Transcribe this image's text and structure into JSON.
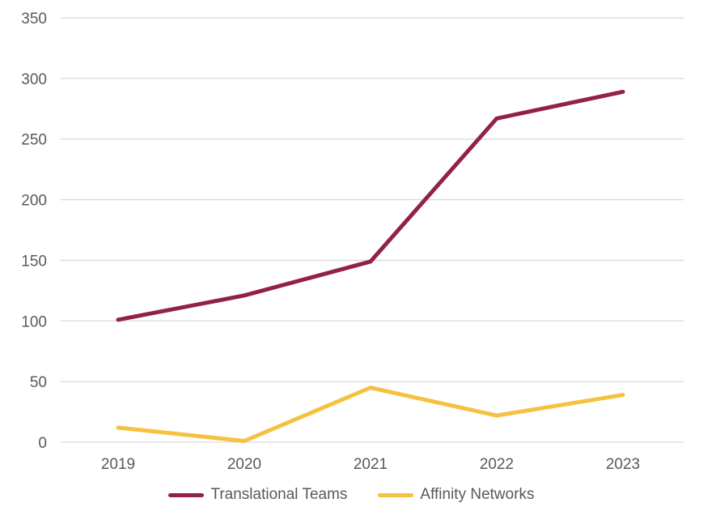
{
  "chart_data": {
    "type": "line",
    "title": "",
    "xlabel": "",
    "ylabel": "",
    "categories": [
      "2019",
      "2020",
      "2021",
      "2022",
      "2023"
    ],
    "series": [
      {
        "name": "Translational Teams",
        "color": "#93204A",
        "values": [
          101,
          121,
          149,
          267,
          289
        ]
      },
      {
        "name": "Affinity Networks",
        "color": "#F4C240",
        "values": [
          12,
          1,
          45,
          22,
          39
        ]
      }
    ],
    "ylim": [
      0,
      350
    ],
    "yticks": [
      0,
      50,
      100,
      150,
      200,
      250,
      300,
      350
    ],
    "grid": true,
    "legend_position": "bottom"
  },
  "legend": {
    "items": [
      {
        "label": "Translational Teams"
      },
      {
        "label": "Affinity Networks"
      }
    ]
  },
  "colors": {
    "gridline": "#D9D9D9",
    "tick_label": "#595959",
    "background": "#FFFFFF"
  }
}
